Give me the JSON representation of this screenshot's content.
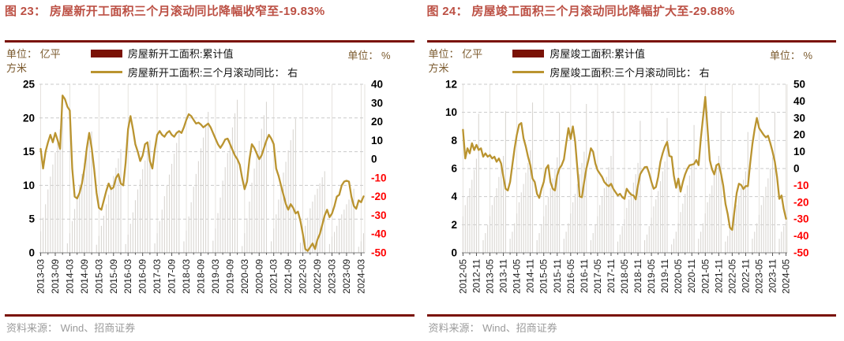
{
  "page": {
    "source": "资料来源： Wind、招商证券"
  },
  "colors": {
    "title": "#BC5044",
    "rule": "#7A1206",
    "legend_bar_swatch": "#7A1206",
    "bar_fill": "#D9D6D2",
    "line": "#BA9430",
    "negative_tick": "#FF0000",
    "axis_text": "#000000",
    "unit_text": "#7B5A2E",
    "source_text": "#9B9B9B",
    "grid": "#C9C9C9",
    "vgrid": "#E3E0DB"
  },
  "charts": [
    {
      "figure_title": "图 23： 房屋新开工面积三个月滚动同比降幅收窄至-19.83%",
      "unit_left": "单位： 亿平方米",
      "unit_right": "单位： %",
      "legend": [
        {
          "label": "房屋新开工面积:累计值",
          "type": "bar"
        },
        {
          "label": "房屋新开工面积:三个月滚动同比： 右",
          "type": "line"
        }
      ],
      "chart_data": {
        "type": "bar+line",
        "x_monthly_start": "2013-03",
        "x_tick_every": 6,
        "x_tick_labels": [
          "2013-03",
          "2013-09",
          "2014-03",
          "2014-09",
          "2015-03",
          "2015-09",
          "2016-03",
          "2016-09",
          "2017-03",
          "2017-09",
          "2018-03",
          "2018-09",
          "2019-03",
          "2019-09",
          "2020-03",
          "2020-09",
          "2021-03",
          "2021-09",
          "2022-03",
          "2022-09",
          "2023-03",
          "2023-09",
          "2024-03"
        ],
        "y_left": {
          "min": 0,
          "max": 25,
          "ticks": [
            0,
            5,
            10,
            15,
            20,
            25
          ],
          "unit": "亿平方米"
        },
        "y_right": {
          "min": -50,
          "max": 40,
          "ticks": [
            -50,
            -40,
            -30,
            -20,
            -10,
            0,
            10,
            20,
            30,
            40
          ],
          "unit": "%"
        },
        "last_value_pct": -19.83,
        "series": [
          {
            "name": "房屋新开工面积:累计值",
            "type": "bar",
            "axis": "left",
            "values": [
              3.2,
              5.2,
              7.2,
              9.4,
              11.3,
              13.1,
              14.9,
              16.5,
              18.3,
              20.1,
              0,
              1.4,
              2.9,
              4.7,
              6.5,
              8.5,
              10.1,
              11.7,
              13.3,
              14.8,
              16.4,
              18,
              0,
              1.2,
              2.5,
              4,
              5.5,
              7.2,
              8.6,
              10,
              11.4,
              12.6,
              14,
              15.4,
              0,
              1.3,
              2.7,
              4.3,
              6,
              7.8,
              9.4,
              10.9,
              12.4,
              13.7,
              15.2,
              16.7,
              0,
              1.4,
              2.9,
              4.7,
              6.4,
              8.4,
              10,
              11.6,
              13.2,
              14.7,
              16.3,
              17.9,
              0,
              1.7,
              3.3,
              5.4,
              7.5,
              9.8,
              11.7,
              13.6,
              15.5,
              17.1,
              19,
              20.9,
              0,
              1.8,
              3.6,
              5.9,
              8.2,
              10.7,
              12.7,
              14.8,
              16.8,
              18.6,
              20.7,
              22.7,
              0,
              1,
              2.9,
              5.1,
              7.6,
              10.4,
              12.5,
              14.6,
              16.6,
              18.4,
              20.4,
              22.4,
              0,
              1.7,
              3.6,
              5.7,
              7.9,
              10.1,
              11.9,
              13.5,
              15.2,
              16.7,
              18.3,
              19.9,
              0,
              1.5,
              3,
              4,
              5.2,
              6.6,
              7.6,
              8.6,
              9.5,
              10.3,
              11.2,
              12.1,
              0,
              1.3,
              2.4,
              3.1,
              4,
              5,
              5.7,
              6.4,
              7.2,
              7.9,
              8.7,
              9.5,
              0,
              0.9,
              1.7,
              2.9
            ]
          },
          {
            "name": "房屋新开工面积:三个月滚动同比",
            "type": "line",
            "axis": "right",
            "values": [
              5.5,
              -5,
              4,
              9,
              13,
              9,
              14,
              10,
              5.5,
              34,
              32,
              28,
              26,
              -5,
              -20,
              -21,
              -18,
              -13,
              -5,
              6,
              14,
              6,
              -5,
              -18,
              -26,
              -27,
              -22,
              -17,
              -13,
              -16,
              -15,
              -10,
              -8,
              -13,
              -14,
              -2,
              16,
              23,
              16,
              8,
              4,
              -1,
              2,
              8,
              9,
              -1,
              -5,
              5,
              13,
              15,
              13,
              12,
              14,
              15,
              13,
              12,
              14,
              15,
              14,
              17,
              21,
              24,
              23,
              21,
              19,
              19.5,
              18.5,
              17,
              18,
              19,
              17,
              14,
              11,
              8,
              6,
              8,
              10.5,
              11,
              8,
              5,
              2,
              0,
              -3,
              -10,
              -16,
              -12,
              0,
              8,
              6,
              3,
              0,
              2,
              6,
              10,
              13,
              11,
              8,
              -5,
              -9,
              -14,
              -19,
              -24,
              -27,
              -24,
              -26,
              -29,
              -28,
              -33,
              -40,
              -48,
              -49,
              -47,
              -45,
              -48,
              -43,
              -40,
              -35,
              -30,
              -27,
              -31,
              -29,
              -25,
              -20,
              -19,
              -14,
              -12,
              -11.5,
              -12,
              -20,
              -25,
              -26.5,
              -22,
              -23,
              -19.83
            ]
          }
        ]
      }
    },
    {
      "figure_title": "图 24： 房屋竣工面积三个月滚动同比降幅扩大至-29.88%",
      "unit_left": "单位： 亿平方米",
      "unit_right": "单位： %",
      "legend": [
        {
          "label": "房屋竣工面积:累计值",
          "type": "bar"
        },
        {
          "label": "房屋竣工面积:三个月滚动同比： 右",
          "type": "line"
        }
      ],
      "chart_data": {
        "type": "bar+line",
        "x_monthly_start": "2012-05",
        "x_tick_every": 6,
        "x_tick_labels": [
          "2012-05",
          "2012-11",
          "2013-05",
          "2013-11",
          "2014-05",
          "2014-11",
          "2015-05",
          "2015-11",
          "2016-05",
          "2016-11",
          "2017-05",
          "2017-11",
          "2018-05",
          "2018-11",
          "2019-05",
          "2019-11",
          "2020-05",
          "2020-11",
          "2021-05",
          "2021-11",
          "2022-05",
          "2022-11",
          "2023-05",
          "2023-11",
          "2024-05"
        ],
        "y_left": {
          "min": 0,
          "max": 12,
          "ticks": [
            0,
            2,
            4,
            6,
            8,
            10,
            12
          ],
          "unit": "亿平方米"
        },
        "y_right": {
          "min": -50,
          "max": 50,
          "ticks": [
            -50,
            -40,
            -30,
            -20,
            -10,
            0,
            10,
            20,
            30,
            40,
            50
          ],
          "unit": "%"
        },
        "last_value_pct": -29.88,
        "series": [
          {
            "name": "房屋竣工面积:累计值",
            "type": "bar",
            "axis": "left",
            "values": [
              2.6,
              3.4,
              4,
              4.6,
              5.2,
              5.9,
              6.7,
              9.9,
              0,
              0.9,
              1.4,
              2,
              2.6,
              3.4,
              4,
              4.6,
              5.4,
              6.1,
              6.9,
              10.1,
              0,
              1,
              1.5,
              2.1,
              2.8,
              3.6,
              4.3,
              4.9,
              5.7,
              6.4,
              7.3,
              10.7,
              0,
              0.9,
              1.4,
              2,
              2.6,
              3.4,
              4,
              4.6,
              5.3,
              6,
              6.8,
              10,
              0,
              1,
              1.5,
              2.1,
              2.8,
              3.6,
              4.2,
              4.9,
              5.6,
              6.4,
              7.2,
              10.6,
              0,
              0.9,
              1.4,
              2,
              2.6,
              3.4,
              4,
              4.6,
              5.4,
              6.1,
              6.9,
              10.1,
              0,
              0.8,
              1.3,
              1.9,
              2.4,
              3.2,
              3.8,
              4.3,
              5,
              5.6,
              6.4,
              9.4,
              0,
              0.9,
              1.3,
              1.9,
              2.5,
              3.3,
              3.8,
              4.4,
              5.1,
              5.8,
              6.5,
              9.6,
              0,
              0.6,
              1,
              1.5,
              2.1,
              2.9,
              3.5,
              4.2,
              4.8,
              5.5,
              6.2,
              9.1,
              0,
              1,
              1.5,
              2.1,
              2.8,
              3.6,
              4.2,
              4.8,
              5.5,
              6.1,
              6.9,
              10.1,
              0,
              0.8,
              1.2,
              1.7,
              2.2,
              2.9,
              3.4,
              4,
              4.6,
              5.2,
              5.8,
              8.6,
              0,
              1,
              1.5,
              2.1,
              2.7,
              3.4,
              4,
              4.7,
              5.3,
              6,
              6.8,
              10,
              0,
              1,
              1.5,
              1.9,
              2.2
            ]
          },
          {
            "name": "房屋竣工面积:三个月滚动同比",
            "type": "line",
            "axis": "right",
            "values": [
              23,
              6,
              12,
              9,
              15,
              11,
              14,
              11,
              12,
              7,
              9,
              7,
              8,
              6,
              7,
              4,
              6,
              3,
              -5,
              -12,
              -13,
              -8,
              2,
              12,
              20,
              26,
              27,
              18,
              13,
              7,
              2,
              -6,
              -8,
              -15,
              -17.5,
              -12,
              -8,
              0,
              2,
              -8,
              -12,
              -13,
              -4,
              0,
              2,
              5.5,
              15,
              24,
              17.5,
              25,
              16,
              0,
              -16.5,
              -17,
              -8,
              0,
              5.5,
              12,
              10,
              3,
              -1,
              -3,
              -5,
              -8,
              -9.5,
              -10.5,
              -9,
              -12,
              -14,
              -16,
              -15,
              -17,
              -18,
              -12,
              -14,
              -15.5,
              -16,
              -18.3,
              -10,
              -3.3,
              -1.1,
              0.8,
              1,
              -3,
              -8,
              -12,
              -11,
              -5,
              4,
              9,
              13,
              15.8,
              7.5,
              7,
              -4.3,
              -11.4,
              -6,
              -13.7,
              -8,
              -3.5,
              -0.2,
              1.9,
              2.3,
              2.7,
              5,
              2,
              17.5,
              30,
              42.5,
              24,
              5,
              -0.4,
              -3.5,
              2,
              2.8,
              -3,
              -10,
              -21,
              -27,
              -35,
              -36.4,
              -25.4,
              -14.5,
              -9,
              -9.8,
              -12.2,
              -10.4,
              -10.4,
              2.8,
              14.6,
              23.2,
              30,
              24,
              22,
              20,
              18.5,
              19.5,
              15,
              10,
              4,
              -5,
              -18,
              -16,
              -24,
              -29.88
            ]
          }
        ]
      }
    }
  ]
}
